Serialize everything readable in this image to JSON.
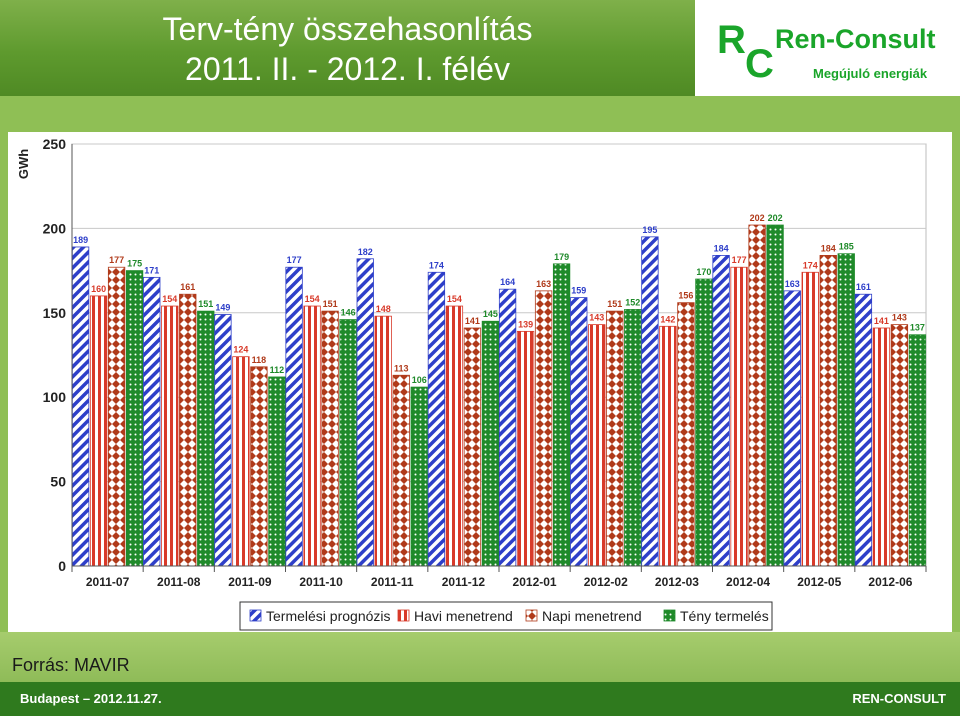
{
  "header": {
    "title_line1": "Terv-tény összehasonlítás",
    "title_line2": "2011. II. - 2012. I. félév"
  },
  "logo": {
    "letter_r": "R",
    "letter_c": "C",
    "name": "Ren-Consult",
    "tagline": "Megújuló energiák"
  },
  "footer": {
    "source": "Forrás: MAVIR",
    "left": "Budapest – 2012.11.27.",
    "right": "REN-CONSULT"
  },
  "chart_data": {
    "type": "bar",
    "ylabel": "GWh",
    "ylim": [
      0,
      250
    ],
    "yticks": [
      0,
      50,
      100,
      150,
      200,
      250
    ],
    "grid": true,
    "legend_position": "bottom",
    "categories": [
      "2011-07",
      "2011-08",
      "2011-09",
      "2011-10",
      "2011-11",
      "2011-12",
      "2012-01",
      "2012-02",
      "2012-03",
      "2012-04",
      "2012-05",
      "2012-06"
    ],
    "series": [
      {
        "name": "Termelési prognózis",
        "color": "#2e3fc9",
        "pattern": "diag",
        "values": [
          189,
          171,
          149,
          177,
          182,
          174,
          164,
          159,
          195,
          184,
          163,
          161
        ]
      },
      {
        "name": "Havi menetrend",
        "color": "#d83a2a",
        "pattern": "vert",
        "values": [
          160,
          154,
          124,
          154,
          148,
          154,
          139,
          143,
          142,
          177,
          174,
          141
        ]
      },
      {
        "name": "Napi menetrend",
        "color": "#b03a1a",
        "pattern": "diamond",
        "values": [
          177,
          161,
          118,
          151,
          113,
          141,
          163,
          151,
          156,
          202,
          184,
          143
        ]
      },
      {
        "name": "Tény termelés",
        "color": "#1f8a2a",
        "pattern": "dots",
        "values": [
          175,
          151,
          112,
          146,
          106,
          145,
          179,
          152,
          170,
          202,
          185,
          137
        ]
      }
    ],
    "label_colors": [
      "#2e3fc9",
      "#d83a2a",
      "#b03a1a",
      "#1f8a2a"
    ]
  }
}
